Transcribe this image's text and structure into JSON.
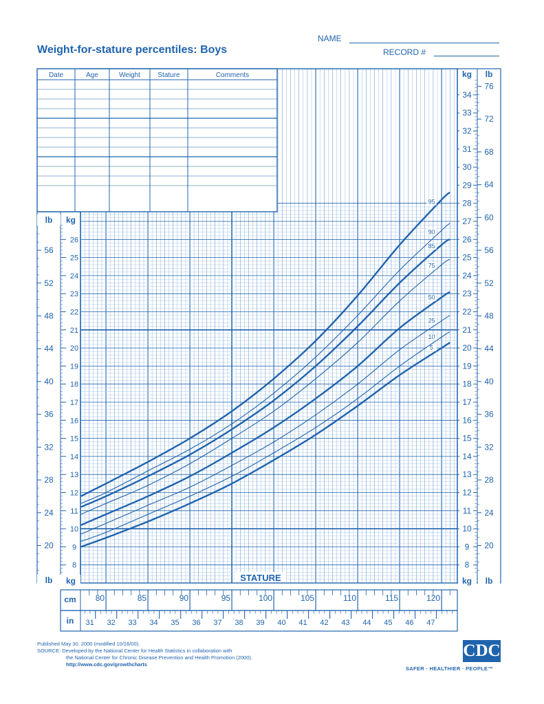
{
  "header": {
    "title": "Weight-for-stature percentiles: Boys",
    "name_label": "NAME",
    "record_label": "RECORD #"
  },
  "record_table": {
    "columns": [
      "Date",
      "Age",
      "Weight",
      "Stature",
      "Comments"
    ]
  },
  "footer": {
    "line1": "Published May 30, 2000 (modified 10/16/00).",
    "line2": "SOURCE: Developed by the National Center for Health Statistics in collaboration with",
    "line3": "the National Center for Chronic Disease Prevention and Health Promotion (2000).",
    "line4": "http://www.cdc.gov/growthcharts"
  },
  "logo": {
    "name": "CDC",
    "tagline": "SAFER · HEALTHIER · PEOPLE™"
  },
  "colors": {
    "ink": "#1f63ad",
    "grid_fine": "#a9c6e8"
  },
  "chart_data": {
    "type": "line",
    "xlabel": "STATURE",
    "x_unit_primary": "cm",
    "x_unit_secondary": "in",
    "y_unit_primary": "kg",
    "y_unit_secondary": "lb",
    "xlim": [
      77,
      122
    ],
    "ylim": [
      7,
      28
    ],
    "x_ticks_cm": [
      80,
      85,
      90,
      95,
      100,
      105,
      110,
      115,
      120
    ],
    "x_ticks_in": [
      31,
      32,
      33,
      34,
      35,
      36,
      37,
      38,
      39,
      40,
      41,
      42,
      43,
      44,
      45,
      46,
      47
    ],
    "y_ticks_kg_left": [
      8,
      9,
      10,
      11,
      12,
      13,
      14,
      15,
      16,
      17,
      18,
      19,
      20,
      21,
      22,
      23,
      24,
      25,
      26
    ],
    "y_ticks_kg_right": [
      8,
      9,
      10,
      11,
      12,
      13,
      14,
      15,
      16,
      17,
      18,
      19,
      20,
      21,
      22,
      23,
      24,
      25,
      26,
      27,
      28,
      29,
      30,
      31,
      32,
      33,
      34
    ],
    "y_ticks_lb_left": [
      20,
      24,
      28,
      32,
      36,
      40,
      44,
      48,
      52,
      56
    ],
    "y_ticks_lb_right": [
      20,
      24,
      28,
      32,
      36,
      40,
      44,
      48,
      52,
      56,
      60,
      64,
      68,
      72,
      76
    ],
    "x": [
      77,
      80,
      85,
      90,
      95,
      100,
      105,
      110,
      115,
      120,
      121
    ],
    "series": [
      {
        "name": "5",
        "values": [
          9.0,
          9.5,
          10.4,
          11.4,
          12.5,
          13.8,
          15.2,
          16.8,
          18.5,
          20.0,
          20.3
        ]
      },
      {
        "name": "10",
        "values": [
          9.3,
          9.8,
          10.8,
          11.8,
          12.9,
          14.2,
          15.6,
          17.2,
          19.0,
          20.6,
          20.9
        ]
      },
      {
        "name": "25",
        "values": [
          9.7,
          10.3,
          11.3,
          12.3,
          13.5,
          14.8,
          16.3,
          18.0,
          19.9,
          21.5,
          21.8
        ]
      },
      {
        "name": "50",
        "values": [
          10.2,
          10.8,
          11.8,
          12.9,
          14.2,
          15.6,
          17.2,
          19.0,
          21.1,
          22.8,
          23.1
        ]
      },
      {
        "name": "75",
        "values": [
          10.8,
          11.4,
          12.4,
          13.6,
          15.0,
          16.5,
          18.3,
          20.3,
          22.6,
          24.6,
          24.9
        ]
      },
      {
        "name": "85",
        "values": [
          11.2,
          11.8,
          12.9,
          14.1,
          15.5,
          17.1,
          19.0,
          21.2,
          23.6,
          25.7,
          26.0
        ]
      },
      {
        "name": "90",
        "values": [
          11.4,
          12.0,
          13.2,
          14.4,
          15.8,
          17.5,
          19.5,
          21.8,
          24.3,
          26.5,
          26.9
        ]
      },
      {
        "name": "95",
        "values": [
          11.8,
          12.5,
          13.7,
          15.0,
          16.5,
          18.3,
          20.4,
          22.9,
          25.7,
          28.2,
          28.6
        ]
      }
    ]
  }
}
